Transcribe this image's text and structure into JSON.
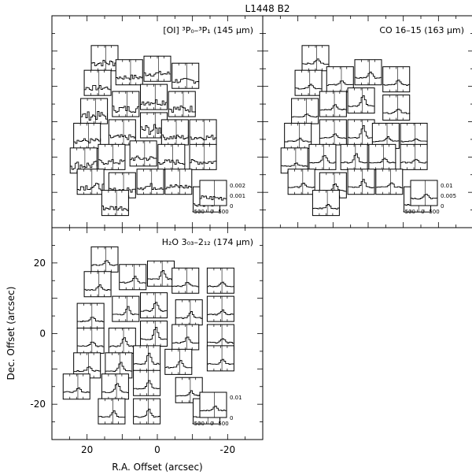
{
  "chart_data": {
    "type": "line",
    "title": "L1448 B2",
    "xlabel": "R.A. Offset (arcsec)",
    "ylabel": "Dec. Offset (arcsec)",
    "xlim": [
      30,
      -30
    ],
    "ylim": [
      -30,
      30
    ],
    "xticks": [
      20,
      0,
      -20
    ],
    "yticks": [
      20,
      0,
      -20
    ],
    "inset_xticks": [
      "-500",
      "0",
      "500"
    ],
    "panels": [
      {
        "name": "oi",
        "label": "[OI] ³P₀–³P₁ (145 μm)",
        "line_shape": "noisy",
        "inset_yticks": [
          "0.002",
          "0.001",
          "0"
        ],
        "spectra": [
          {
            "ra": 15,
            "dec": 18,
            "peak": 0.4
          },
          {
            "ra": 17,
            "dec": 11,
            "peak": 0.3
          },
          {
            "ra": 8,
            "dec": 14,
            "peak": 0.3
          },
          {
            "ra": 0,
            "dec": 15,
            "peak": 0.3
          },
          {
            "ra": -8,
            "dec": 13,
            "peak": 0.3
          },
          {
            "ra": 18,
            "dec": 3,
            "peak": 0.5
          },
          {
            "ra": 9,
            "dec": 5,
            "peak": 0.4
          },
          {
            "ra": 1,
            "dec": 7,
            "peak": 0.4
          },
          {
            "ra": -7,
            "dec": 5,
            "peak": 0.4
          },
          {
            "ra": 20,
            "dec": -4,
            "peak": 0.3
          },
          {
            "ra": 10,
            "dec": -3,
            "peak": 0.3
          },
          {
            "ra": 1,
            "dec": -1,
            "peak": 0.6
          },
          {
            "ra": -5,
            "dec": -3,
            "peak": 0.3
          },
          {
            "ra": -13,
            "dec": -3,
            "peak": 0.3
          },
          {
            "ra": 21,
            "dec": -11,
            "peak": 0.5
          },
          {
            "ra": 13,
            "dec": -10,
            "peak": 0.3
          },
          {
            "ra": 4,
            "dec": -9,
            "peak": 0.3
          },
          {
            "ra": -4,
            "dec": -10,
            "peak": 0.3
          },
          {
            "ra": -13,
            "dec": -10,
            "peak": 0.3
          },
          {
            "ra": 19,
            "dec": -17,
            "peak": 0.4
          },
          {
            "ra": 10,
            "dec": -18,
            "peak": 0.3
          },
          {
            "ra": 2,
            "dec": -17,
            "peak": 0.4
          },
          {
            "ra": -6,
            "dec": -17,
            "peak": 0.3
          },
          {
            "ra": 12,
            "dec": -23,
            "peak": 0.3
          },
          {
            "ra": -14,
            "dec": -22,
            "peak": 0.2
          }
        ]
      },
      {
        "name": "co",
        "label": "CO 16–15 (163 μm)",
        "line_shape": "peaked",
        "inset_yticks": [
          "0.01",
          "0.005",
          "0"
        ],
        "spectra": [
          {
            "ra": 15,
            "dec": 18,
            "peak": 0.3
          },
          {
            "ra": 17,
            "dec": 11,
            "peak": 0.3
          },
          {
            "ra": 8,
            "dec": 12,
            "peak": 0.3
          },
          {
            "ra": 0,
            "dec": 14,
            "peak": 0.4
          },
          {
            "ra": -8,
            "dec": 12,
            "peak": 0.3
          },
          {
            "ra": 18,
            "dec": 3,
            "peak": 0.2
          },
          {
            "ra": 10,
            "dec": 5,
            "peak": 0.3
          },
          {
            "ra": 2,
            "dec": 6,
            "peak": 0.7
          },
          {
            "ra": -8,
            "dec": 4,
            "peak": 0.3
          },
          {
            "ra": 20,
            "dec": -4,
            "peak": 0.2
          },
          {
            "ra": 10,
            "dec": -3,
            "peak": 0.3
          },
          {
            "ra": 2,
            "dec": -3,
            "peak": 0.8
          },
          {
            "ra": -5,
            "dec": -4,
            "peak": 0.3
          },
          {
            "ra": -13,
            "dec": -4,
            "peak": 0.2
          },
          {
            "ra": 21,
            "dec": -11,
            "peak": 0.2
          },
          {
            "ra": 13,
            "dec": -10,
            "peak": 0.5
          },
          {
            "ra": 4,
            "dec": -10,
            "peak": 0.6
          },
          {
            "ra": -4,
            "dec": -10,
            "peak": 0.3
          },
          {
            "ra": -13,
            "dec": -10,
            "peak": 0.2
          },
          {
            "ra": 19,
            "dec": -17,
            "peak": 0.3
          },
          {
            "ra": 10,
            "dec": -18,
            "peak": 0.5
          },
          {
            "ra": 2,
            "dec": -17,
            "peak": 0.5
          },
          {
            "ra": -6,
            "dec": -17,
            "peak": 0.3
          },
          {
            "ra": 12,
            "dec": -23,
            "peak": 0.3
          },
          {
            "ra": -14,
            "dec": -22,
            "peak": 0.2
          }
        ]
      },
      {
        "name": "h2o",
        "label": "H₂O 3₀₃–2₁₂ (174 μm)",
        "line_shape": "peaked",
        "inset_yticks": [
          "0.01",
          "0"
        ],
        "spectra": [
          {
            "ra": 15,
            "dec": 21,
            "peak": 0.3
          },
          {
            "ra": 17,
            "dec": 14,
            "peak": 0.3
          },
          {
            "ra": 7,
            "dec": 16,
            "peak": 0.4
          },
          {
            "ra": -1,
            "dec": 17,
            "peak": 0.6
          },
          {
            "ra": -8,
            "dec": 15,
            "peak": 0.3
          },
          {
            "ra": -18,
            "dec": 15,
            "peak": 0.3
          },
          {
            "ra": 19,
            "dec": 5,
            "peak": 0.3
          },
          {
            "ra": 9,
            "dec": 7,
            "peak": 0.5
          },
          {
            "ra": 1,
            "dec": 8,
            "peak": 0.6
          },
          {
            "ra": -9,
            "dec": 6,
            "peak": 0.4
          },
          {
            "ra": -18,
            "dec": 7,
            "peak": 0.3
          },
          {
            "ra": 19,
            "dec": -2,
            "peak": 0.3
          },
          {
            "ra": 10,
            "dec": -2,
            "peak": 0.6
          },
          {
            "ra": 1,
            "dec": 0,
            "peak": 0.8
          },
          {
            "ra": -8,
            "dec": -1,
            "peak": 0.4
          },
          {
            "ra": -18,
            "dec": -1,
            "peak": 0.3
          },
          {
            "ra": 20,
            "dec": -9,
            "peak": 0.3
          },
          {
            "ra": 11,
            "dec": -9,
            "peak": 0.6
          },
          {
            "ra": 3,
            "dec": -7,
            "peak": 0.7
          },
          {
            "ra": -6,
            "dec": -8,
            "peak": 0.5
          },
          {
            "ra": -18,
            "dec": -7,
            "peak": 0.3
          },
          {
            "ra": 23,
            "dec": -15,
            "peak": 0.3
          },
          {
            "ra": 12,
            "dec": -15,
            "peak": 0.6
          },
          {
            "ra": 3,
            "dec": -14,
            "peak": 0.5
          },
          {
            "ra": -9,
            "dec": -16,
            "peak": 0.3
          },
          {
            "ra": 13,
            "dec": -22,
            "peak": 0.4
          },
          {
            "ra": 3,
            "dec": -22,
            "peak": 0.5
          },
          {
            "ra": -14,
            "dec": -22,
            "peak": 0.2
          }
        ]
      }
    ]
  }
}
